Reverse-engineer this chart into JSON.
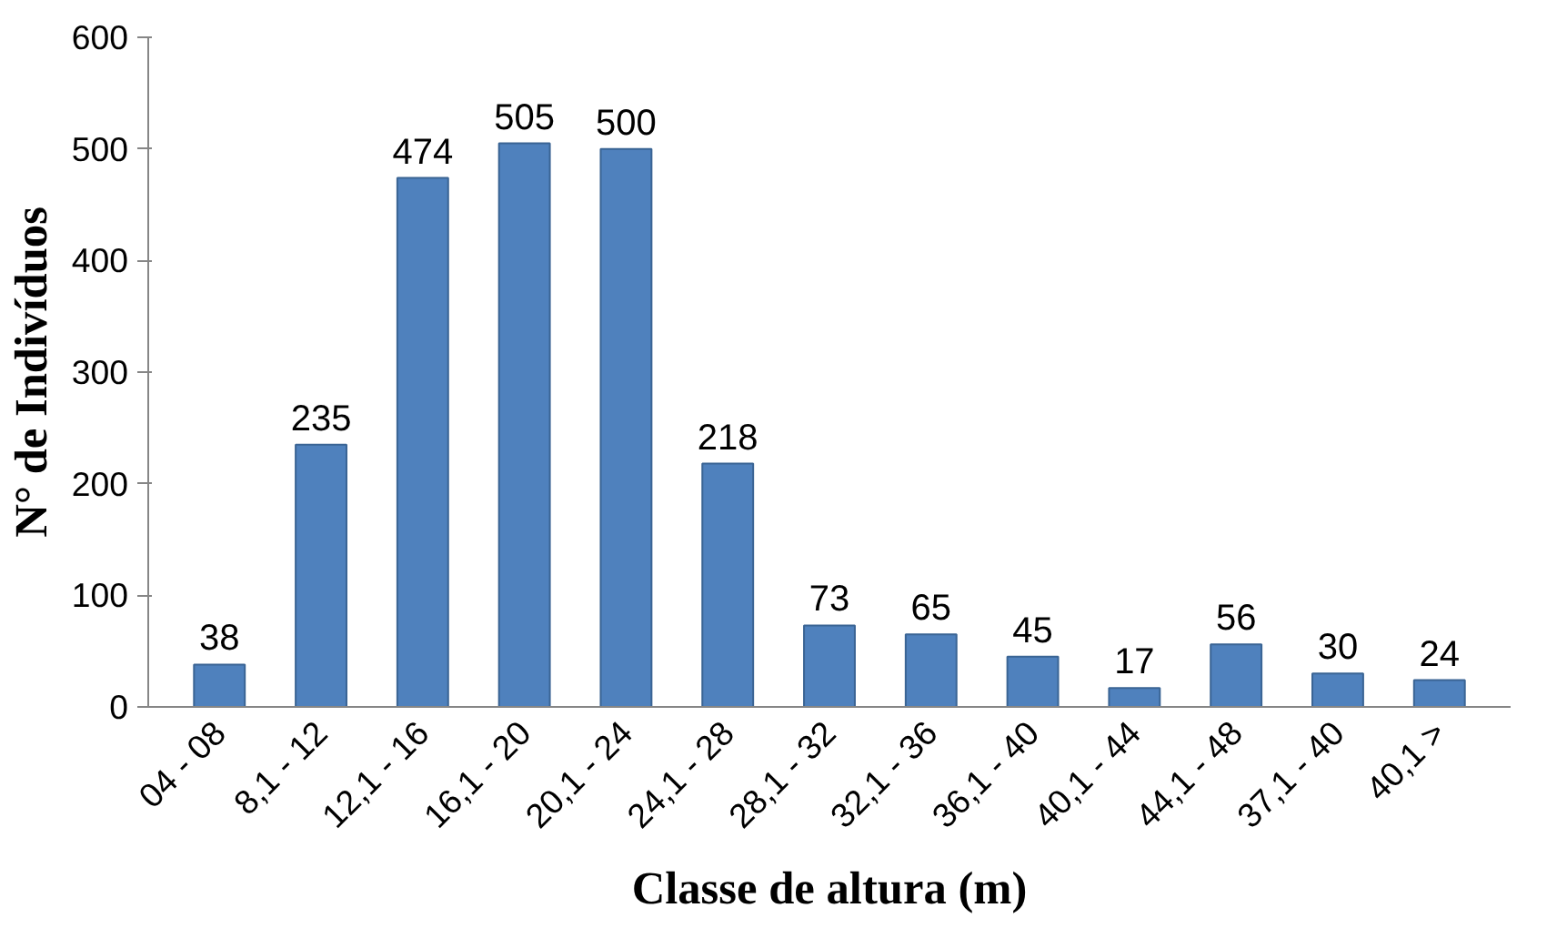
{
  "chart_data": {
    "type": "bar",
    "xlabel": "Classe de altura (m)",
    "ylabel": "N° de Indivíduos",
    "categories": [
      "04 - 08",
      "8,1 - 12",
      "12,1 - 16",
      "16,1 - 20",
      "20,1 - 24",
      "24,1 - 28",
      "28,1 - 32",
      "32,1 - 36",
      "36,1 - 40",
      "40,1 - 44",
      "44,1 - 48",
      "37,1 - 40",
      "40,1 >"
    ],
    "values": [
      38,
      235,
      474,
      505,
      500,
      218,
      73,
      65,
      45,
      17,
      56,
      30,
      24
    ],
    "color": "#4f81bd",
    "ylim": [
      0,
      600
    ],
    "yticks": [
      0,
      100,
      200,
      300,
      400,
      500,
      600
    ],
    "data_labels": true
  }
}
